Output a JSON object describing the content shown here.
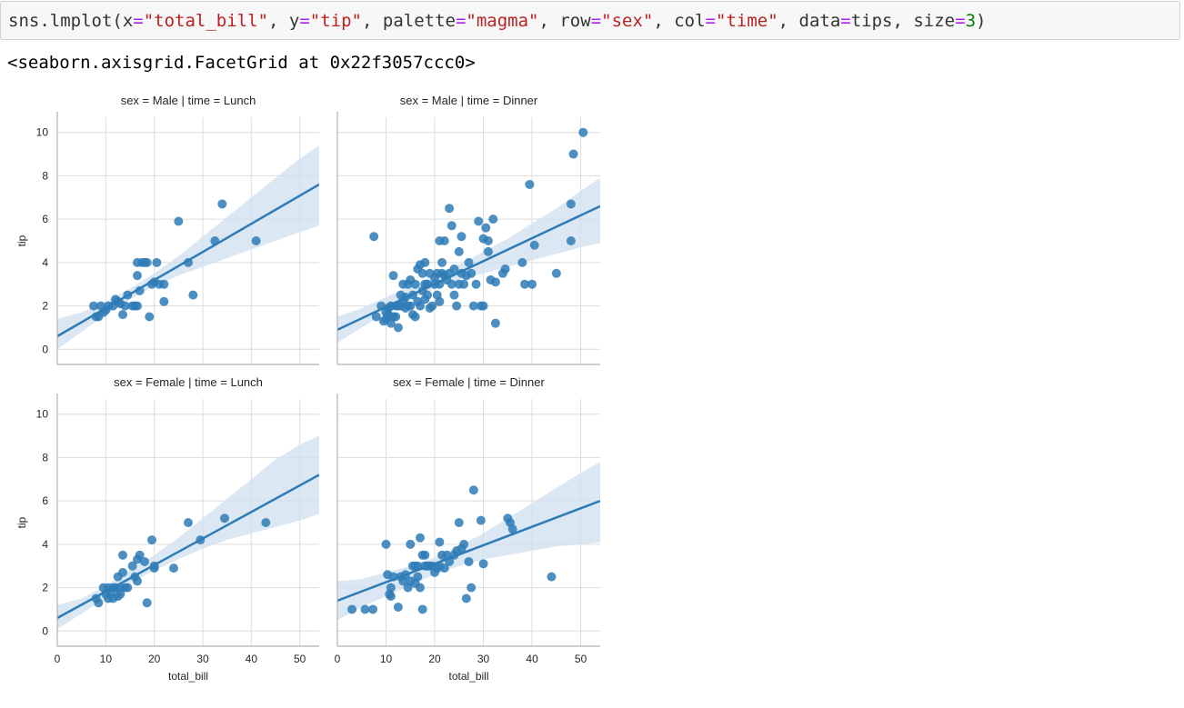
{
  "code_cell": {
    "parts": [
      {
        "text": "sns.lmplot(x",
        "cls": ""
      },
      {
        "text": "=",
        "cls": "tok-eq"
      },
      {
        "text": "\"total_bill\"",
        "cls": "tok-str"
      },
      {
        "text": ", y",
        "cls": ""
      },
      {
        "text": "=",
        "cls": "tok-eq"
      },
      {
        "text": "\"tip\"",
        "cls": "tok-str"
      },
      {
        "text": ", palette",
        "cls": ""
      },
      {
        "text": "=",
        "cls": "tok-eq"
      },
      {
        "text": "\"magma\"",
        "cls": "tok-str"
      },
      {
        "text": ", row",
        "cls": ""
      },
      {
        "text": "=",
        "cls": "tok-eq"
      },
      {
        "text": "\"sex\"",
        "cls": "tok-str"
      },
      {
        "text": ", col",
        "cls": ""
      },
      {
        "text": "=",
        "cls": "tok-eq"
      },
      {
        "text": "\"time\"",
        "cls": "tok-str"
      },
      {
        "text": ", data",
        "cls": ""
      },
      {
        "text": "=",
        "cls": "tok-eq"
      },
      {
        "text": "tips, size",
        "cls": ""
      },
      {
        "text": "=",
        "cls": "tok-eq"
      },
      {
        "text": "3",
        "cls": "tok-num"
      },
      {
        "text": ")",
        "cls": ""
      }
    ]
  },
  "output": {
    "text": "<seaborn.axisgrid.FacetGrid at 0x22f3057ccc0>"
  },
  "colors": {
    "point": "#2f7bb6",
    "line": "#2f7bb6",
    "band": "#cfe0f0",
    "grid": "#dcdcdc",
    "axis": "#b0b0b0"
  },
  "chart_data": [
    {
      "type": "scatter",
      "title": "sex = Male | time = Lunch",
      "xlabel": "",
      "ylabel": "tip",
      "xlim": [
        0,
        54
      ],
      "ylim": [
        -0.7,
        10.7
      ],
      "xticks": [
        0,
        10,
        20,
        30,
        40,
        50
      ],
      "yticks": [
        0,
        2,
        4,
        6,
        8,
        10
      ],
      "grid": true,
      "points": [
        [
          7.5,
          2.0
        ],
        [
          8.0,
          1.5
        ],
        [
          8.5,
          1.5
        ],
        [
          9.0,
          2.0
        ],
        [
          9.5,
          1.7
        ],
        [
          10.0,
          1.8
        ],
        [
          10.5,
          2.0
        ],
        [
          11.5,
          2.0
        ],
        [
          12.0,
          2.3
        ],
        [
          12.5,
          2.2
        ],
        [
          13.0,
          2.1
        ],
        [
          13.5,
          1.6
        ],
        [
          14.0,
          2.0
        ],
        [
          14.5,
          2.5
        ],
        [
          15.5,
          2.0
        ],
        [
          16.0,
          2.0
        ],
        [
          16.5,
          2.0
        ],
        [
          16.5,
          3.4
        ],
        [
          16.5,
          4.0
        ],
        [
          17.0,
          2.7
        ],
        [
          17.5,
          4.0
        ],
        [
          18.0,
          4.0
        ],
        [
          18.5,
          4.0
        ],
        [
          19.0,
          1.5
        ],
        [
          19.5,
          3.0
        ],
        [
          20.0,
          3.1
        ],
        [
          20.5,
          4.0
        ],
        [
          21.0,
          3.0
        ],
        [
          22.0,
          3.0
        ],
        [
          22.0,
          2.2
        ],
        [
          25.0,
          5.9
        ],
        [
          27.0,
          4.0
        ],
        [
          28.0,
          2.5
        ],
        [
          32.5,
          5.0
        ],
        [
          34.0,
          6.7
        ],
        [
          41.0,
          5.0
        ]
      ],
      "fit": {
        "x": [
          0,
          54
        ],
        "y": [
          0.6,
          7.6
        ]
      },
      "band": {
        "x": [
          0,
          5,
          10,
          15,
          20,
          25,
          30,
          35,
          40,
          45,
          50,
          54
        ],
        "lower": [
          0.0,
          0.8,
          1.6,
          2.3,
          2.9,
          3.4,
          3.8,
          4.2,
          4.6,
          5.0,
          5.4,
          5.7
        ],
        "upper": [
          1.4,
          1.7,
          2.2,
          2.8,
          3.5,
          4.3,
          5.2,
          6.1,
          7.0,
          7.9,
          8.8,
          9.4
        ]
      }
    },
    {
      "type": "scatter",
      "title": "sex = Male | time = Dinner",
      "xlabel": "",
      "ylabel": "",
      "xlim": [
        0,
        54
      ],
      "ylim": [
        -0.7,
        10.7
      ],
      "xticks": [
        0,
        10,
        20,
        30,
        40,
        50
      ],
      "yticks": [
        0,
        2,
        4,
        6,
        8,
        10
      ],
      "grid": true,
      "points": [
        [
          7.5,
          5.2
        ],
        [
          8.0,
          1.5
        ],
        [
          9.0,
          2.0
        ],
        [
          9.5,
          1.3
        ],
        [
          10.0,
          1.7
        ],
        [
          10.0,
          1.4
        ],
        [
          10.5,
          1.6
        ],
        [
          10.5,
          1.9
        ],
        [
          11.0,
          1.2
        ],
        [
          11.0,
          2.0
        ],
        [
          11.5,
          1.5
        ],
        [
          11.5,
          3.4
        ],
        [
          12.0,
          1.5
        ],
        [
          12.0,
          2.0
        ],
        [
          12.5,
          1.0
        ],
        [
          12.5,
          2.0
        ],
        [
          13.0,
          2.0
        ],
        [
          13.0,
          2.5
        ],
        [
          13.5,
          2.2
        ],
        [
          13.5,
          3.0
        ],
        [
          14.0,
          1.9
        ],
        [
          14.0,
          2.4
        ],
        [
          14.5,
          3.0
        ],
        [
          14.5,
          2.0
        ],
        [
          15.0,
          2.0
        ],
        [
          15.0,
          3.2
        ],
        [
          15.5,
          1.6
        ],
        [
          15.5,
          2.5
        ],
        [
          16.0,
          1.5
        ],
        [
          16.0,
          3.0
        ],
        [
          16.5,
          3.7
        ],
        [
          16.5,
          2.2
        ],
        [
          17.0,
          2.0
        ],
        [
          17.0,
          3.9
        ],
        [
          17.5,
          2.7
        ],
        [
          17.5,
          3.5
        ],
        [
          18.0,
          2.3
        ],
        [
          18.0,
          4.0
        ],
        [
          18.0,
          3.0
        ],
        [
          18.5,
          2.5
        ],
        [
          18.5,
          3.0
        ],
        [
          19.0,
          3.5
        ],
        [
          19.0,
          1.9
        ],
        [
          19.5,
          2.0
        ],
        [
          20.0,
          3.0
        ],
        [
          20.0,
          3.3
        ],
        [
          20.5,
          2.5
        ],
        [
          20.5,
          3.5
        ],
        [
          21.0,
          5.0
        ],
        [
          21.0,
          2.2
        ],
        [
          21.0,
          3.0
        ],
        [
          21.5,
          3.5
        ],
        [
          21.5,
          4.0
        ],
        [
          22.0,
          3.4
        ],
        [
          22.0,
          5.0
        ],
        [
          22.5,
          3.2
        ],
        [
          23.0,
          6.5
        ],
        [
          23.0,
          3.5
        ],
        [
          23.5,
          5.7
        ],
        [
          23.5,
          3.0
        ],
        [
          24.0,
          2.5
        ],
        [
          24.0,
          3.7
        ],
        [
          24.5,
          2.0
        ],
        [
          25.0,
          4.5
        ],
        [
          25.0,
          3.0
        ],
        [
          25.5,
          5.2
        ],
        [
          25.5,
          3.5
        ],
        [
          26.0,
          3.0
        ],
        [
          26.5,
          3.4
        ],
        [
          27.0,
          4.0
        ],
        [
          27.5,
          3.5
        ],
        [
          28.0,
          2.0
        ],
        [
          28.5,
          3.0
        ],
        [
          29.0,
          5.9
        ],
        [
          29.5,
          2.0
        ],
        [
          30.0,
          5.1
        ],
        [
          30.0,
          2.0
        ],
        [
          30.5,
          5.6
        ],
        [
          31.0,
          5.0
        ],
        [
          31.0,
          4.5
        ],
        [
          31.5,
          3.2
        ],
        [
          32.0,
          6.0
        ],
        [
          32.5,
          1.2
        ],
        [
          32.5,
          3.1
        ],
        [
          34.0,
          3.5
        ],
        [
          34.5,
          3.7
        ],
        [
          38.0,
          4.0
        ],
        [
          38.5,
          3.0
        ],
        [
          39.5,
          7.6
        ],
        [
          40.0,
          3.0
        ],
        [
          40.5,
          4.8
        ],
        [
          45.0,
          3.5
        ],
        [
          48.0,
          5.0
        ],
        [
          48.0,
          6.7
        ],
        [
          48.5,
          9.0
        ],
        [
          50.5,
          10.0
        ]
      ],
      "fit": {
        "x": [
          0,
          54
        ],
        "y": [
          0.9,
          6.6
        ]
      },
      "band": {
        "x": [
          0,
          5,
          10,
          15,
          20,
          25,
          30,
          35,
          40,
          45,
          50,
          54
        ],
        "lower": [
          0.3,
          1.0,
          1.7,
          2.3,
          2.8,
          3.2,
          3.5,
          3.8,
          4.1,
          4.4,
          4.7,
          4.9
        ],
        "upper": [
          1.5,
          1.9,
          2.4,
          2.9,
          3.4,
          3.9,
          4.5,
          5.1,
          5.8,
          6.5,
          7.3,
          7.9
        ]
      }
    },
    {
      "type": "scatter",
      "title": "sex = Female | time = Lunch",
      "xlabel": "total_bill",
      "ylabel": "tip",
      "xlim": [
        0,
        54
      ],
      "ylim": [
        -0.7,
        10.7
      ],
      "xticks": [
        0,
        10,
        20,
        30,
        40,
        50
      ],
      "yticks": [
        0,
        2,
        4,
        6,
        8,
        10
      ],
      "grid": true,
      "points": [
        [
          8.0,
          1.5
        ],
        [
          8.5,
          1.3
        ],
        [
          9.5,
          2.0
        ],
        [
          10.0,
          1.7
        ],
        [
          10.5,
          2.0
        ],
        [
          10.5,
          1.5
        ],
        [
          11.0,
          1.8
        ],
        [
          11.5,
          2.0
        ],
        [
          11.5,
          1.5
        ],
        [
          12.0,
          2.0
        ],
        [
          12.5,
          1.6
        ],
        [
          12.5,
          2.5
        ],
        [
          13.0,
          2.0
        ],
        [
          13.0,
          1.7
        ],
        [
          13.5,
          2.7
        ],
        [
          13.5,
          3.5
        ],
        [
          14.0,
          2.0
        ],
        [
          14.5,
          2.0
        ],
        [
          15.5,
          3.0
        ],
        [
          16.0,
          2.5
        ],
        [
          16.5,
          2.3
        ],
        [
          16.5,
          3.3
        ],
        [
          17.0,
          3.5
        ],
        [
          18.0,
          3.2
        ],
        [
          18.5,
          1.3
        ],
        [
          19.5,
          4.2
        ],
        [
          20.0,
          3.0
        ],
        [
          20.0,
          2.9
        ],
        [
          24.0,
          2.9
        ],
        [
          27.0,
          5.0
        ],
        [
          29.5,
          4.2
        ],
        [
          34.5,
          5.2
        ],
        [
          43.0,
          5.0
        ]
      ],
      "fit": {
        "x": [
          0,
          54
        ],
        "y": [
          0.6,
          7.2
        ]
      },
      "band": {
        "x": [
          0,
          5,
          10,
          15,
          20,
          25,
          30,
          35,
          40,
          45,
          50,
          54
        ],
        "lower": [
          0.1,
          0.8,
          1.5,
          2.2,
          2.8,
          3.3,
          3.8,
          4.2,
          4.5,
          4.8,
          5.1,
          5.4
        ],
        "upper": [
          1.2,
          1.5,
          2.1,
          2.8,
          3.5,
          4.3,
          5.2,
          6.1,
          7.0,
          7.9,
          8.6,
          9.0
        ]
      }
    },
    {
      "type": "scatter",
      "title": "sex = Female | time = Dinner",
      "xlabel": "total_bill",
      "ylabel": "",
      "xlim": [
        0,
        54
      ],
      "ylim": [
        -0.7,
        10.7
      ],
      "xticks": [
        0,
        10,
        20,
        30,
        40,
        50
      ],
      "yticks": [
        0,
        2,
        4,
        6,
        8,
        10
      ],
      "grid": true,
      "points": [
        [
          3.0,
          1.0
        ],
        [
          5.7,
          1.0
        ],
        [
          7.3,
          1.0
        ],
        [
          10.0,
          4.0
        ],
        [
          10.3,
          2.6
        ],
        [
          10.7,
          1.7
        ],
        [
          11.0,
          1.6
        ],
        [
          11.0,
          2.0
        ],
        [
          11.5,
          2.5
        ],
        [
          12.5,
          1.1
        ],
        [
          13.0,
          2.5
        ],
        [
          13.5,
          2.3
        ],
        [
          14.0,
          2.6
        ],
        [
          14.5,
          2.0
        ],
        [
          15.0,
          4.0
        ],
        [
          15.0,
          2.3
        ],
        [
          15.5,
          3.0
        ],
        [
          16.0,
          3.0
        ],
        [
          16.0,
          2.2
        ],
        [
          16.5,
          3.0
        ],
        [
          16.5,
          2.5
        ],
        [
          17.0,
          4.3
        ],
        [
          17.0,
          2.0
        ],
        [
          17.5,
          1.0
        ],
        [
          17.5,
          3.5
        ],
        [
          18.0,
          3.0
        ],
        [
          18.0,
          3.5
        ],
        [
          18.5,
          3.0
        ],
        [
          19.0,
          3.0
        ],
        [
          19.5,
          3.0
        ],
        [
          20.0,
          2.7
        ],
        [
          20.5,
          2.9
        ],
        [
          21.0,
          3.0
        ],
        [
          21.0,
          4.1
        ],
        [
          21.5,
          3.5
        ],
        [
          22.0,
          2.9
        ],
        [
          22.5,
          3.5
        ],
        [
          23.0,
          3.2
        ],
        [
          24.0,
          3.5
        ],
        [
          24.5,
          3.7
        ],
        [
          25.0,
          5.0
        ],
        [
          25.5,
          3.8
        ],
        [
          26.0,
          4.0
        ],
        [
          26.5,
          1.5
        ],
        [
          27.0,
          3.2
        ],
        [
          27.5,
          2.0
        ],
        [
          28.0,
          6.5
        ],
        [
          29.5,
          5.1
        ],
        [
          30.0,
          3.1
        ],
        [
          35.0,
          5.2
        ],
        [
          35.5,
          5.0
        ],
        [
          36.0,
          4.7
        ],
        [
          44.0,
          2.5
        ]
      ],
      "fit": {
        "x": [
          0,
          54
        ],
        "y": [
          1.4,
          6.0
        ]
      },
      "band": {
        "x": [
          0,
          5,
          10,
          15,
          20,
          25,
          30,
          35,
          40,
          45,
          50,
          54
        ],
        "lower": [
          0.5,
          1.1,
          1.6,
          2.1,
          2.6,
          3.0,
          3.3,
          3.5,
          3.7,
          3.9,
          4.0,
          4.1
        ],
        "upper": [
          2.3,
          2.4,
          2.7,
          3.0,
          3.4,
          3.9,
          4.5,
          5.2,
          5.9,
          6.6,
          7.3,
          7.8
        ]
      }
    }
  ]
}
